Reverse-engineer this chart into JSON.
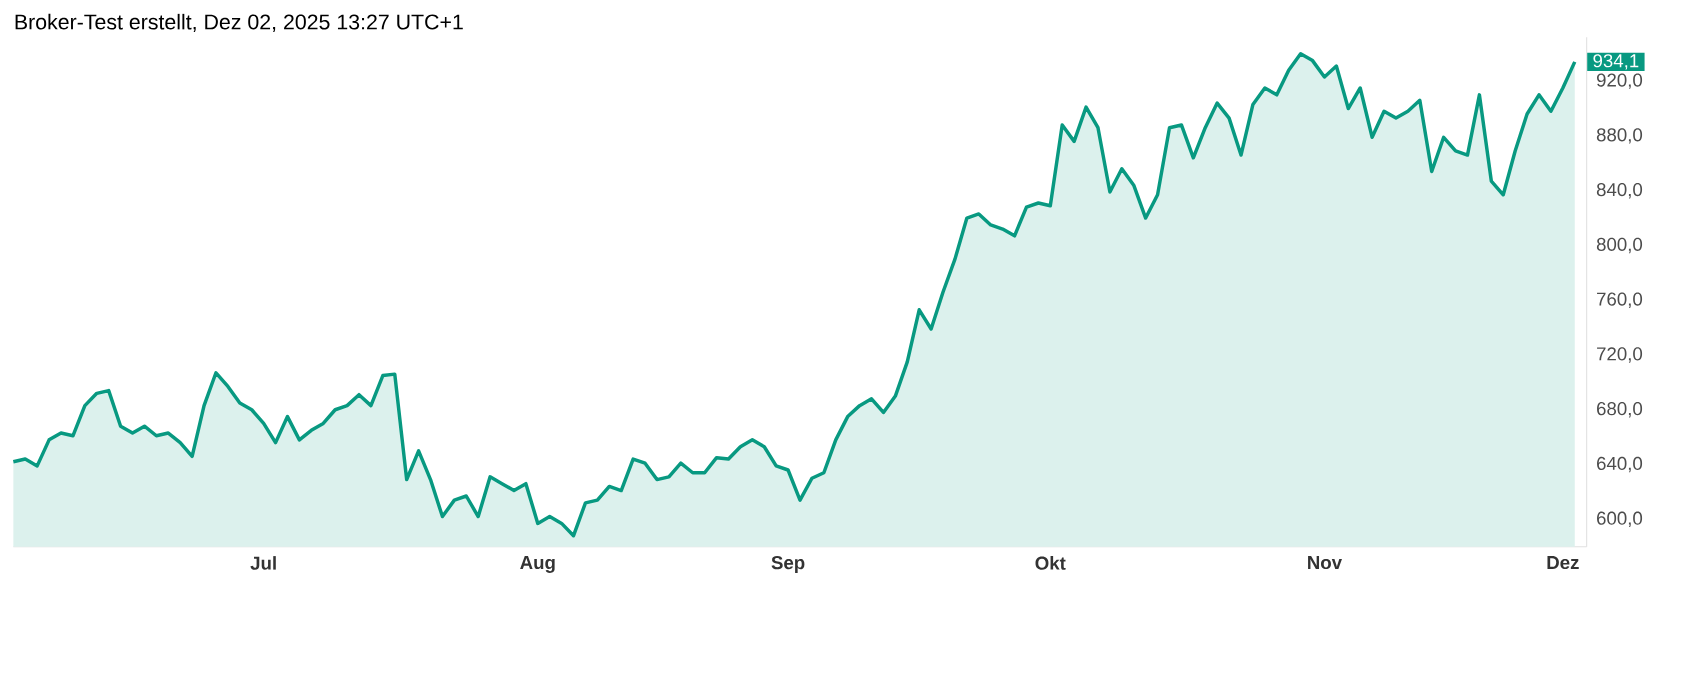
{
  "chart_data": {
    "type": "area",
    "title": "Broker-Test erstellt, Dez 02, 2025 13:27 UTC+1",
    "color": "#089981",
    "categories": [
      null,
      null,
      null,
      null,
      null,
      null,
      null,
      null,
      null,
      null,
      null,
      null,
      null,
      null,
      null,
      null,
      null,
      null,
      null,
      null,
      null,
      "Jul",
      null,
      null,
      null,
      null,
      null,
      null,
      null,
      null,
      null,
      null,
      null,
      null,
      null,
      null,
      null,
      null,
      null,
      null,
      null,
      null,
      null,
      null,
      "Aug",
      null,
      null,
      null,
      null,
      null,
      null,
      null,
      null,
      null,
      null,
      null,
      null,
      null,
      null,
      null,
      null,
      null,
      null,
      null,
      null,
      "Sep",
      null,
      null,
      null,
      null,
      null,
      null,
      null,
      null,
      null,
      null,
      null,
      null,
      null,
      null,
      null,
      null,
      null,
      null,
      null,
      null,
      null,
      "Okt",
      null,
      null,
      null,
      null,
      null,
      null,
      null,
      null,
      null,
      null,
      null,
      null,
      null,
      null,
      null,
      null,
      null,
      null,
      null,
      null,
      null,
      null,
      "Nov",
      null,
      null,
      null,
      null,
      null,
      null,
      null,
      null,
      null,
      null,
      null,
      null,
      null,
      null,
      null,
      null,
      null,
      null,
      null,
      "Dez",
      null
    ],
    "values": [
      642,
      644,
      639,
      658,
      663,
      661,
      683,
      692,
      694,
      668,
      663,
      668,
      661,
      663,
      656,
      646,
      683,
      707,
      697,
      685,
      680,
      670,
      656,
      675,
      658,
      665,
      670,
      680,
      683,
      691,
      683,
      705,
      706,
      629,
      650,
      629,
      602,
      614,
      617,
      602,
      631,
      626,
      621,
      626,
      597,
      602,
      597,
      588,
      612,
      614,
      624,
      621,
      644,
      641,
      629,
      631,
      641,
      634,
      634,
      645,
      644,
      653,
      658,
      653,
      639,
      636,
      614,
      630,
      634,
      658,
      675,
      683,
      688,
      678,
      690,
      715,
      753,
      739,
      766,
      790,
      820,
      823,
      815,
      812,
      807,
      828,
      831,
      829,
      888,
      876,
      901,
      886,
      839,
      856,
      844,
      820,
      837,
      886,
      888,
      864,
      886,
      904,
      893,
      866,
      903,
      915,
      910,
      928,
      940,
      935,
      923,
      931,
      900,
      915,
      879,
      898,
      893,
      898,
      906,
      854,
      879,
      869,
      866,
      910,
      847,
      837,
      869,
      896,
      910,
      898,
      915,
      934.1
    ],
    "ylim": [
      580,
      952
    ],
    "yticks": [
      {
        "value": 600,
        "label": "600,0"
      },
      {
        "value": 640,
        "label": "640,0"
      },
      {
        "value": 680,
        "label": "680,0"
      },
      {
        "value": 720,
        "label": "720,0"
      },
      {
        "value": 760,
        "label": "760,0"
      },
      {
        "value": 800,
        "label": "800,0"
      },
      {
        "value": 840,
        "label": "840,0"
      },
      {
        "value": 880,
        "label": "880,0"
      },
      {
        "value": 920,
        "label": "920,0"
      }
    ],
    "annotations": [
      {
        "text": "934,1",
        "y": 934.1
      }
    ]
  }
}
